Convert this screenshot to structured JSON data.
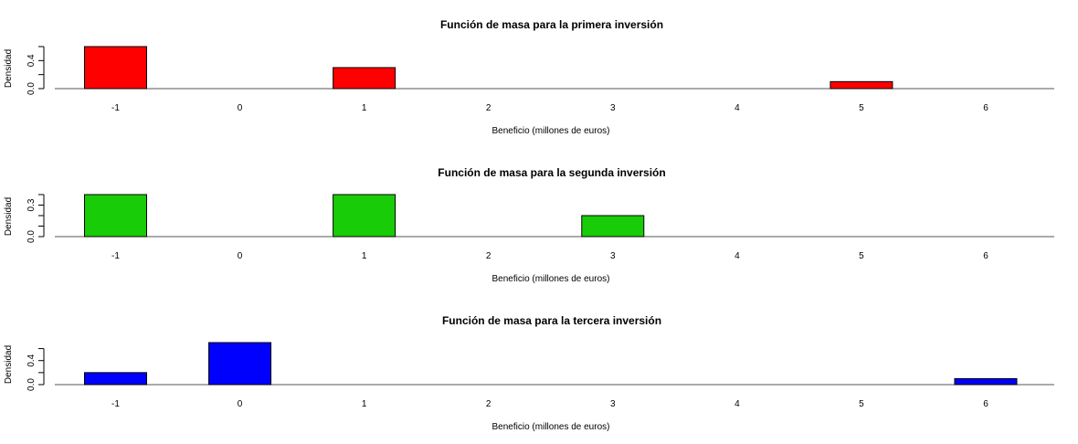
{
  "chart_data": [
    {
      "type": "bar",
      "title": "Función de masa para la primera inversión",
      "xlabel": "Beneficio (millones de euros)",
      "ylabel": "Densidad",
      "categories": [
        "-1",
        "0",
        "1",
        "2",
        "3",
        "4",
        "5",
        "6"
      ],
      "values": [
        0.6,
        0,
        0.3,
        0,
        0,
        0,
        0.1,
        0
      ],
      "color": "#ff0000",
      "yticks": [
        0.0,
        0.2,
        0.4,
        0.6
      ],
      "ytick_labels": [
        "0.0",
        "",
        "0.4",
        ""
      ],
      "ylim": [
        0,
        0.6
      ],
      "grid": false
    },
    {
      "type": "bar",
      "title": "Función de masa para la segunda inversión",
      "xlabel": "Beneficio (millones de euros)",
      "ylabel": "Densidad",
      "categories": [
        "-1",
        "0",
        "1",
        "2",
        "3",
        "4",
        "5",
        "6"
      ],
      "values": [
        0.4,
        0,
        0.4,
        0,
        0.2,
        0,
        0,
        0
      ],
      "color": "#19cc08",
      "yticks": [
        0.0,
        0.1,
        0.2,
        0.3,
        0.4
      ],
      "ytick_labels": [
        "0.0",
        "",
        "",
        "0.3",
        ""
      ],
      "ylim": [
        0,
        0.4
      ],
      "grid": false
    },
    {
      "type": "bar",
      "title": "Función de masa para la tercera inversión",
      "xlabel": "Beneficio (millones de euros)",
      "ylabel": "Densidad",
      "categories": [
        "-1",
        "0",
        "1",
        "2",
        "3",
        "4",
        "5",
        "6"
      ],
      "values": [
        0.2,
        0.7,
        0,
        0,
        0,
        0,
        0,
        0.1
      ],
      "color": "#0000ff",
      "yticks": [
        0.0,
        0.2,
        0.4,
        0.6
      ],
      "ytick_labels": [
        "0.0",
        "",
        "0.4",
        ""
      ],
      "ylim": [
        0,
        0.7
      ],
      "grid": false
    }
  ]
}
